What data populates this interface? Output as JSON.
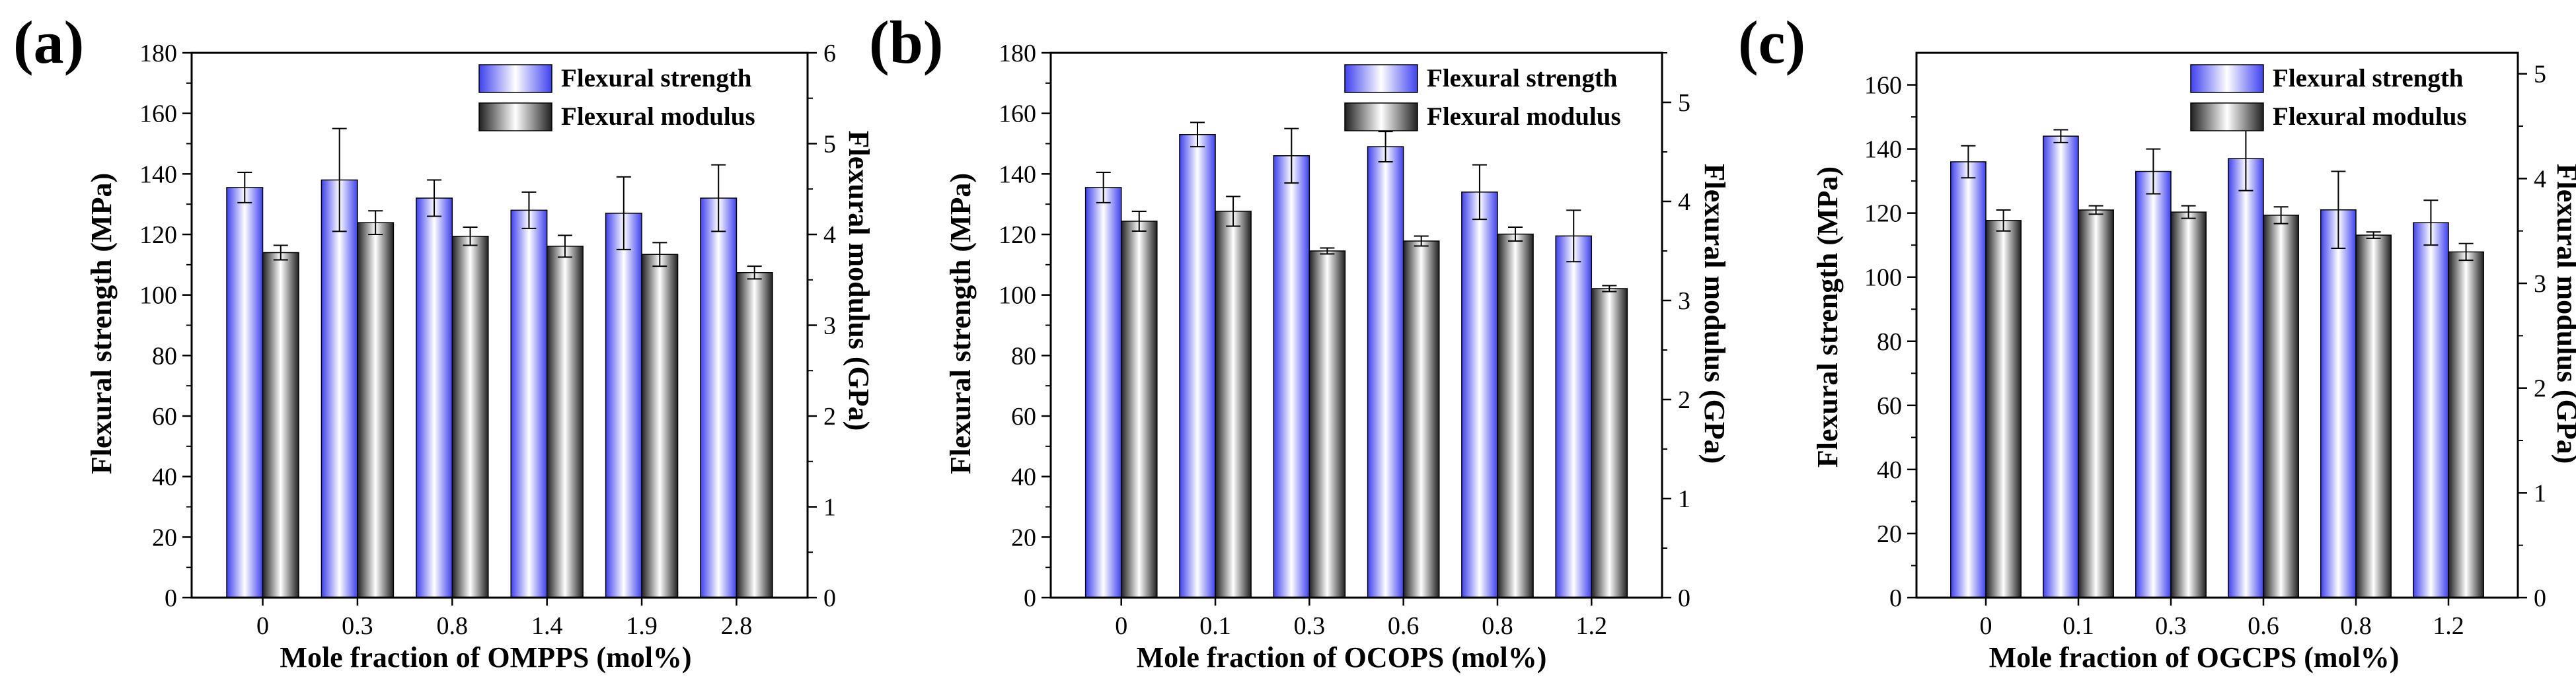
{
  "colors": {
    "strength_gradient": [
      "#3f41ef",
      "#ffffff"
    ],
    "modulus_gradient": [
      "#202020",
      "#ffffff"
    ],
    "axis": "#000000"
  },
  "chart_data": [
    {
      "type": "bar",
      "panel_label": "(a)",
      "xlabel": "Mole fraction of OMPPS (mol%)",
      "ylabel_left": "Flexural  strength (MPa)",
      "ylabel_right": "Flexural modulus (GPa)",
      "categories": [
        "0",
        "0.3",
        "0.8",
        "1.4",
        "1.9",
        "2.8"
      ],
      "ylim_left": [
        0,
        180
      ],
      "yticks_left": [
        0,
        20,
        40,
        60,
        80,
        100,
        120,
        140,
        160,
        180
      ],
      "ylim_right": [
        0,
        6
      ],
      "yticks_right": [
        0,
        1,
        2,
        3,
        4,
        5,
        6
      ],
      "legend_position": "top-right",
      "series": [
        {
          "name": "Flexural strength",
          "axis": "left",
          "values": [
            135.5,
            138,
            132,
            128,
            127,
            132
          ],
          "errors": [
            5,
            17,
            6,
            6,
            12,
            11
          ]
        },
        {
          "name": "Flexural modulus",
          "axis": "right",
          "values": [
            3.8,
            4.13,
            3.98,
            3.87,
            3.78,
            3.58
          ],
          "errors": [
            0.08,
            0.13,
            0.1,
            0.12,
            0.13,
            0.07
          ]
        }
      ]
    },
    {
      "type": "bar",
      "panel_label": "(b)",
      "xlabel": "Mole fraction of OCOPS (mol%)",
      "ylabel_left": "Flexural strength (MPa)",
      "ylabel_right": "Flexural modulus (GPa)",
      "categories": [
        "0",
        "0.1",
        "0.3",
        "0.6",
        "0.8",
        "1.2"
      ],
      "ylim_left": [
        0,
        180
      ],
      "yticks_left": [
        0,
        20,
        40,
        60,
        80,
        100,
        120,
        140,
        160,
        180
      ],
      "ylim_right": [
        0,
        5.5
      ],
      "yticks_right": [
        0,
        1,
        2,
        3,
        4,
        5
      ],
      "legend_position": "top-right",
      "series": [
        {
          "name": "Flexural strength",
          "axis": "left",
          "values": [
            135.5,
            153,
            146,
            149,
            134,
            119.5
          ],
          "errors": [
            5,
            4,
            9,
            5,
            9,
            8.5
          ]
        },
        {
          "name": "Flexural modulus",
          "axis": "right",
          "values": [
            3.8,
            3.9,
            3.5,
            3.6,
            3.67,
            3.12
          ],
          "errors": [
            0.1,
            0.15,
            0.03,
            0.05,
            0.07,
            0.03
          ]
        }
      ]
    },
    {
      "type": "bar",
      "panel_label": "(c)",
      "xlabel": "Mole fraction of OGCPS (mol%)",
      "ylabel_left": "Flexural strength (MPa)",
      "ylabel_right": "Flexural modulus (GPa)",
      "categories": [
        "0",
        "0.1",
        "0.3",
        "0.6",
        "0.8",
        "1.2"
      ],
      "ylim_left": [
        0,
        170
      ],
      "yticks_left": [
        0,
        20,
        40,
        60,
        80,
        100,
        120,
        140,
        160
      ],
      "ylim_right": [
        0,
        5.2
      ],
      "yticks_right": [
        0,
        1,
        2,
        3,
        4,
        5
      ],
      "legend_position": "top-right",
      "series": [
        {
          "name": "Flexural strength",
          "axis": "left",
          "values": [
            136,
            144,
            133,
            137,
            121,
            117
          ],
          "errors": [
            5,
            2,
            7,
            10,
            12,
            7
          ]
        },
        {
          "name": "Flexural modulus",
          "axis": "right",
          "values": [
            3.6,
            3.7,
            3.68,
            3.65,
            3.46,
            3.3
          ],
          "errors": [
            0.1,
            0.04,
            0.06,
            0.08,
            0.03,
            0.08
          ]
        }
      ]
    }
  ]
}
